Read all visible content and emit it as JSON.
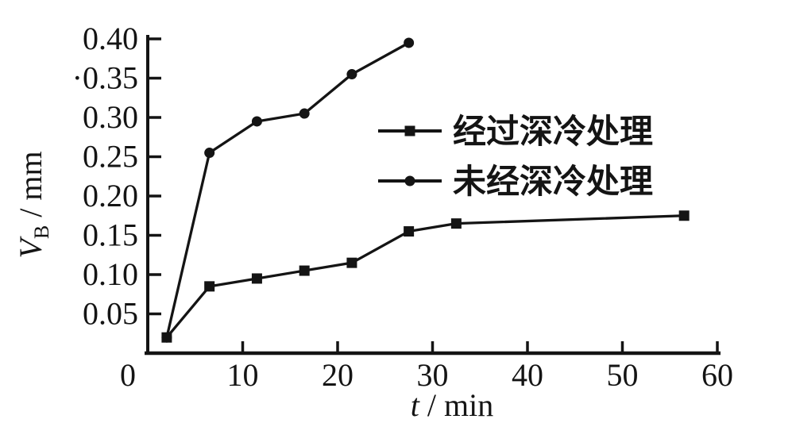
{
  "figure": {
    "background": "#ffffff",
    "ink_color": "#141414"
  },
  "chart_data": {
    "type": "line",
    "title": "",
    "xlabel": "t / min",
    "ylabel": "VB / mm",
    "xlabel_parts": {
      "variable": "t",
      "unit_suffix": " / min"
    },
    "ylabel_parts": {
      "variable": "V",
      "subscript": "B",
      "unit_suffix": " / mm"
    },
    "xlim": [
      0,
      60
    ],
    "ylim": [
      0,
      0.42
    ],
    "grid": false,
    "x_ticks": [
      0,
      10,
      20,
      30,
      40,
      50,
      60
    ],
    "x_tick_labels": [
      "0",
      "10",
      "20",
      "30",
      "40",
      "50",
      "60"
    ],
    "y_ticks": [
      0.05,
      0.1,
      0.15,
      0.2,
      0.25,
      0.3,
      0.35,
      0.4
    ],
    "y_tick_labels": [
      "0.05",
      "0.10",
      "0.15",
      "0.20",
      "0.25",
      "0.30",
      "·0.35",
      "0.40"
    ],
    "legend_position": "inside-upper-right",
    "series": [
      {
        "name": "经过深冷处理",
        "marker": "square",
        "color": "#141414",
        "points": [
          [
            2,
            0.02
          ],
          [
            6.5,
            0.085
          ],
          [
            11.5,
            0.095
          ],
          [
            16.5,
            0.105
          ],
          [
            21.5,
            0.115
          ],
          [
            27.5,
            0.155
          ],
          [
            32.5,
            0.165
          ],
          [
            56.5,
            0.175
          ]
        ]
      },
      {
        "name": "未经深冷处理",
        "marker": "circle",
        "color": "#141414",
        "points": [
          [
            2,
            0.02
          ],
          [
            6.5,
            0.255
          ],
          [
            11.5,
            0.295
          ],
          [
            16.5,
            0.305
          ],
          [
            21.5,
            0.355
          ],
          [
            27.5,
            0.395
          ]
        ]
      }
    ]
  }
}
